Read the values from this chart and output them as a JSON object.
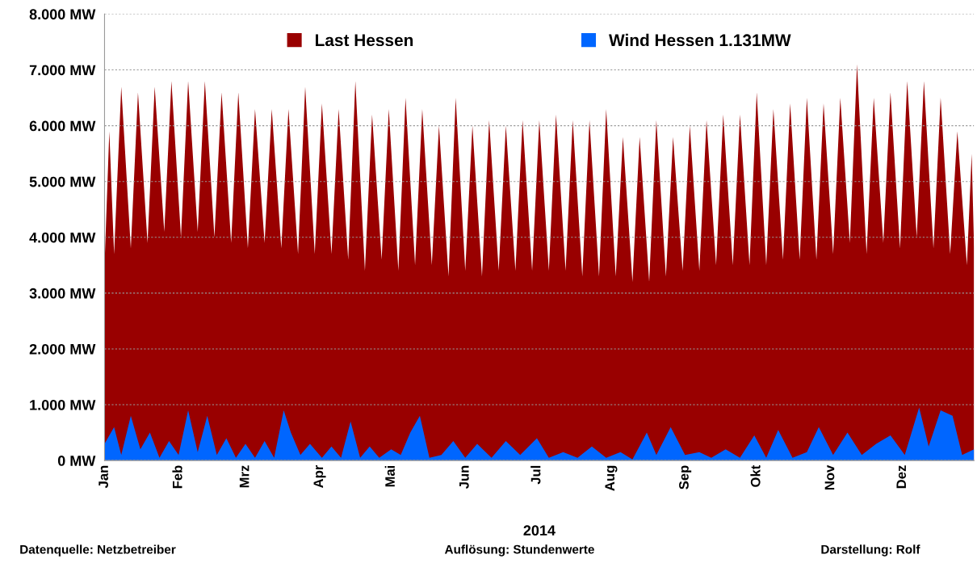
{
  "chart_data": {
    "type": "area",
    "xlabel": "2014",
    "xlim": [
      "2014-01-01",
      "2014-12-31"
    ],
    "xticks": [
      {
        "value": "2014-01-01",
        "label": "Jan"
      },
      {
        "value": "2014-02-01",
        "label": "Feb"
      },
      {
        "value": "2014-03-01",
        "label": "Mrz"
      },
      {
        "value": "2014-04-01",
        "label": "Apr"
      },
      {
        "value": "2014-05-01",
        "label": "Mai"
      },
      {
        "value": "2014-06-01",
        "label": "Jun"
      },
      {
        "value": "2014-07-01",
        "label": "Jul"
      },
      {
        "value": "2014-08-01",
        "label": "Aug"
      },
      {
        "value": "2014-09-01",
        "label": "Sep"
      },
      {
        "value": "2014-10-01",
        "label": "Okt"
      },
      {
        "value": "2014-11-01",
        "label": "Nov"
      },
      {
        "value": "2014-12-01",
        "label": "Dez"
      }
    ],
    "ylim": [
      0,
      8000
    ],
    "yticks": [
      {
        "value": 0,
        "label": "0 MW"
      },
      {
        "value": 1000,
        "label": "1.000 MW"
      },
      {
        "value": 2000,
        "label": "2.000 MW"
      },
      {
        "value": 3000,
        "label": "3.000 MW"
      },
      {
        "value": 4000,
        "label": "4.000 MW"
      },
      {
        "value": 5000,
        "label": "5.000 MW"
      },
      {
        "value": 6000,
        "label": "6.000 MW"
      },
      {
        "value": 7000,
        "label": "7.000 MW"
      },
      {
        "value": 8000,
        "label": "8.000 MW"
      }
    ],
    "grid": "y",
    "legend": "top",
    "annotations": [
      "Datenquelle: Netzbetreiber",
      "Auflösung: Stundenwerte",
      "Darstellung: Rolf"
    ],
    "series": [
      {
        "name": "Last Hessen",
        "color": "#990000",
        "x": [
          "2014-01-01",
          "2014-01-03",
          "2014-01-05",
          "2014-01-08",
          "2014-01-12",
          "2014-01-15",
          "2014-01-19",
          "2014-01-22",
          "2014-01-26",
          "2014-01-29",
          "2014-02-02",
          "2014-02-05",
          "2014-02-09",
          "2014-02-12",
          "2014-02-16",
          "2014-02-19",
          "2014-02-23",
          "2014-02-26",
          "2014-03-02",
          "2014-03-05",
          "2014-03-09",
          "2014-03-12",
          "2014-03-16",
          "2014-03-19",
          "2014-03-23",
          "2014-03-26",
          "2014-03-30",
          "2014-04-02",
          "2014-04-06",
          "2014-04-09",
          "2014-04-13",
          "2014-04-16",
          "2014-04-20",
          "2014-04-23",
          "2014-04-27",
          "2014-04-30",
          "2014-05-04",
          "2014-05-07",
          "2014-05-11",
          "2014-05-14",
          "2014-05-18",
          "2014-05-21",
          "2014-05-25",
          "2014-05-28",
          "2014-06-01",
          "2014-06-04",
          "2014-06-08",
          "2014-06-11",
          "2014-06-15",
          "2014-06-18",
          "2014-06-22",
          "2014-06-25",
          "2014-06-29",
          "2014-07-02",
          "2014-07-06",
          "2014-07-09",
          "2014-07-13",
          "2014-07-16",
          "2014-07-20",
          "2014-07-23",
          "2014-07-27",
          "2014-07-30",
          "2014-08-03",
          "2014-08-06",
          "2014-08-10",
          "2014-08-13",
          "2014-08-17",
          "2014-08-20",
          "2014-08-24",
          "2014-08-27",
          "2014-08-31",
          "2014-09-03",
          "2014-09-07",
          "2014-09-10",
          "2014-09-14",
          "2014-09-17",
          "2014-09-21",
          "2014-09-24",
          "2014-09-28",
          "2014-10-01",
          "2014-10-05",
          "2014-10-08",
          "2014-10-12",
          "2014-10-15",
          "2014-10-19",
          "2014-10-22",
          "2014-10-26",
          "2014-10-29",
          "2014-11-02",
          "2014-11-05",
          "2014-11-09",
          "2014-11-12",
          "2014-11-16",
          "2014-11-19",
          "2014-11-23",
          "2014-11-26",
          "2014-11-30",
          "2014-12-03",
          "2014-12-07",
          "2014-12-10",
          "2014-12-14",
          "2014-12-17",
          "2014-12-21",
          "2014-12-24",
          "2014-12-28",
          "2014-12-30",
          "2014-12-31"
        ],
        "values": [
          3500,
          5900,
          3700,
          6700,
          3800,
          6600,
          3900,
          6700,
          4100,
          6800,
          4000,
          6800,
          4100,
          6800,
          4000,
          6600,
          3900,
          6600,
          3800,
          6300,
          3900,
          6300,
          3800,
          6300,
          3700,
          6700,
          3700,
          6400,
          3700,
          6300,
          3600,
          6800,
          3400,
          6200,
          3600,
          6300,
          3400,
          6500,
          3500,
          6300,
          3500,
          6000,
          3300,
          6500,
          3400,
          6000,
          3300,
          6100,
          3400,
          6000,
          3400,
          6100,
          3400,
          6100,
          3400,
          6200,
          3400,
          6100,
          3300,
          6100,
          3300,
          6300,
          3300,
          5800,
          3200,
          5800,
          3200,
          6100,
          3300,
          5800,
          3400,
          6000,
          3400,
          6100,
          3500,
          6200,
          3500,
          6200,
          3500,
          6600,
          3500,
          6300,
          3600,
          6400,
          3600,
          6500,
          3600,
          6400,
          3700,
          6500,
          3900,
          7100,
          3700,
          6500,
          3900,
          6600,
          3800,
          6800,
          4000,
          6800,
          3800,
          6500,
          3700,
          5900,
          3500,
          5500,
          3800
        ]
      },
      {
        "name": "Wind Hessen 1.131MW",
        "color": "#0066ff",
        "x": [
          "2014-01-01",
          "2014-01-05",
          "2014-01-08",
          "2014-01-12",
          "2014-01-16",
          "2014-01-20",
          "2014-01-24",
          "2014-01-28",
          "2014-02-01",
          "2014-02-05",
          "2014-02-09",
          "2014-02-13",
          "2014-02-17",
          "2014-02-21",
          "2014-02-25",
          "2014-03-01",
          "2014-03-05",
          "2014-03-09",
          "2014-03-13",
          "2014-03-17",
          "2014-03-20",
          "2014-03-24",
          "2014-03-28",
          "2014-04-02",
          "2014-04-06",
          "2014-04-10",
          "2014-04-14",
          "2014-04-18",
          "2014-04-22",
          "2014-04-26",
          "2014-05-01",
          "2014-05-05",
          "2014-05-09",
          "2014-05-13",
          "2014-05-17",
          "2014-05-22",
          "2014-05-27",
          "2014-06-01",
          "2014-06-06",
          "2014-06-12",
          "2014-06-18",
          "2014-06-24",
          "2014-07-01",
          "2014-07-06",
          "2014-07-12",
          "2014-07-18",
          "2014-07-24",
          "2014-07-30",
          "2014-08-05",
          "2014-08-10",
          "2014-08-16",
          "2014-08-20",
          "2014-08-26",
          "2014-09-01",
          "2014-09-07",
          "2014-09-12",
          "2014-09-18",
          "2014-09-24",
          "2014-09-30",
          "2014-10-05",
          "2014-10-10",
          "2014-10-16",
          "2014-10-22",
          "2014-10-27",
          "2014-11-02",
          "2014-11-08",
          "2014-11-14",
          "2014-11-20",
          "2014-11-26",
          "2014-12-02",
          "2014-12-08",
          "2014-12-12",
          "2014-12-17",
          "2014-12-22",
          "2014-12-26",
          "2014-12-31"
        ],
        "values": [
          300,
          600,
          100,
          800,
          200,
          500,
          50,
          350,
          100,
          900,
          150,
          800,
          100,
          400,
          50,
          300,
          50,
          350,
          50,
          900,
          500,
          100,
          300,
          50,
          250,
          50,
          700,
          50,
          250,
          50,
          200,
          100,
          500,
          800,
          50,
          100,
          350,
          50,
          300,
          50,
          350,
          100,
          400,
          50,
          150,
          50,
          250,
          50,
          150,
          20,
          500,
          100,
          600,
          100,
          150,
          50,
          200,
          50,
          450,
          50,
          550,
          50,
          150,
          600,
          100,
          500,
          100,
          300,
          450,
          100,
          950,
          250,
          900,
          800,
          100,
          200
        ]
      }
    ]
  }
}
